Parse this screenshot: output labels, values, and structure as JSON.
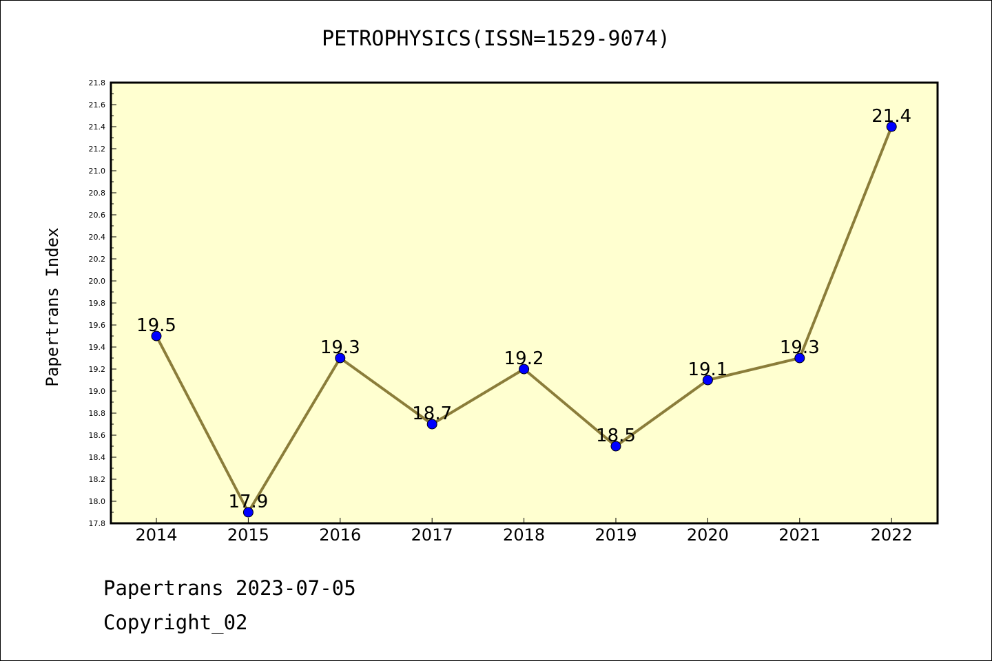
{
  "chart_data": {
    "type": "line",
    "title": "PETROPHYSICS(ISSN=1529-9074)",
    "ylabel": "Papertrans Index",
    "xlabel": "",
    "categories": [
      "2014",
      "2015",
      "2016",
      "2017",
      "2018",
      "2019",
      "2020",
      "2021",
      "2022"
    ],
    "values": [
      19.5,
      17.9,
      19.3,
      18.7,
      19.2,
      18.5,
      19.1,
      19.3,
      21.4
    ],
    "value_labels": [
      "19.5",
      "17.9",
      "19.3",
      "18.7",
      "19.2",
      "18.5",
      "19.1",
      "19.3",
      "21.4"
    ],
    "ylim": [
      17.8,
      21.8
    ],
    "yticks": [
      "17.8",
      "18.0",
      "18.2",
      "18.4",
      "18.6",
      "18.8",
      "19.0",
      "19.2",
      "19.4",
      "19.6",
      "19.8",
      "20.0",
      "20.2",
      "20.4",
      "20.6",
      "20.8",
      "21.0",
      "21.2",
      "21.4",
      "21.6",
      "21.8"
    ],
    "grid": false,
    "colors": {
      "plot_background": "#ffffd0",
      "line": "#8b7d3a",
      "marker": "#0000ff"
    }
  },
  "footer": {
    "line1": "Papertrans 2023-07-05",
    "line2": "Copyright_02"
  }
}
